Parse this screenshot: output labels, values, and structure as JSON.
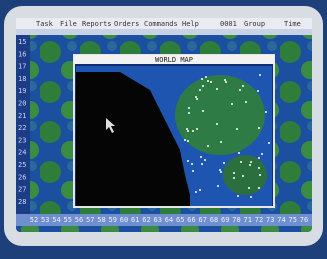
{
  "menu": [
    "Task",
    "File",
    "Reports",
    "Orders",
    "Commands",
    "Help"
  ],
  "status": [
    "0001",
    "Group",
    "Time"
  ],
  "window_title": "WORLD MAP",
  "bottom_labels": [
    "52",
    "53",
    "54",
    "55",
    "56",
    "57",
    "58",
    "59",
    "60",
    "61",
    "62",
    "63",
    "64",
    "65",
    "66",
    "67",
    "68",
    "69",
    "70",
    "71",
    "72",
    "73",
    "74",
    "75",
    "76"
  ],
  "left_labels": [
    "15",
    "16",
    "17",
    "18",
    "19",
    "20",
    "21",
    "22",
    "23",
    "24",
    "25",
    "26",
    "27",
    "28"
  ]
}
